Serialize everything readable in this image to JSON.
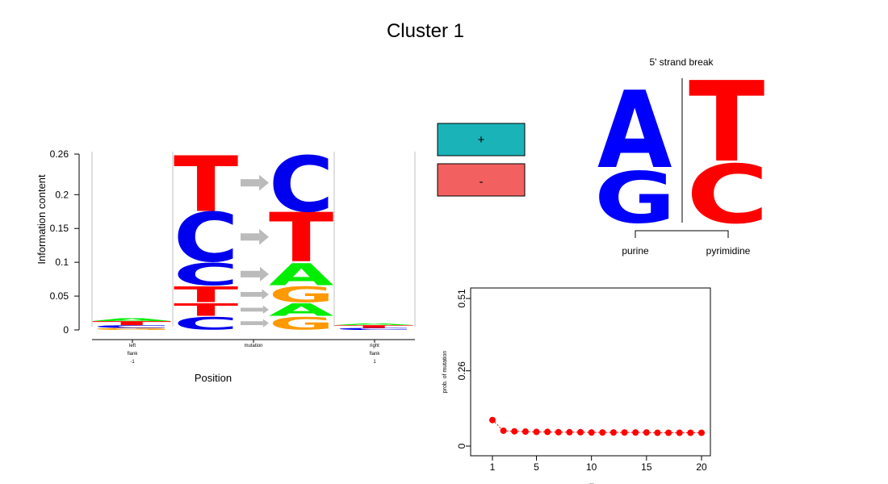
{
  "title": "Cluster 1",
  "colors": {
    "A": "#00ee00",
    "C": "#0000ee",
    "G": "#ff9900",
    "T": "#ff0000",
    "plus_box": "#1ab3b8",
    "minus_box": "#f26160",
    "purine": "#0000ff",
    "pyrimidine": "#ff0000",
    "arrow": "#bbbbbb",
    "points": "#ff0000"
  },
  "logo": {
    "ylabel": "Information content",
    "xlabel": "Position",
    "y_ticks": [
      "0",
      "0.05",
      "0.1",
      "0.15",
      "0.2",
      "0.26"
    ],
    "x_ticks": [
      {
        "lines": [
          "left",
          "flank",
          "-1"
        ]
      },
      {
        "lines": [
          "mutation"
        ]
      },
      {
        "lines": [
          "right",
          "flank",
          "1"
        ]
      }
    ]
  },
  "strand": {
    "plus_label": "+",
    "minus_label": "-"
  },
  "strand_break": {
    "title": "5' strand break",
    "left_label": "purine",
    "right_label": "pyrimidine",
    "left_letters": [
      "A",
      "G"
    ],
    "right_letters": [
      "T",
      "C"
    ]
  },
  "chart_data": [
    {
      "type": "bar",
      "name": "sequence logo",
      "ylabel": "Information content",
      "xlabel": "Position",
      "ylim": [
        0,
        0.26
      ],
      "positions": [
        "left flank -1",
        "mutation",
        "right flank 1"
      ],
      "left_flank": {
        "C": 0.004,
        "G": 0.003,
        "T": 0.006,
        "A": 0.004
      },
      "right_flank": {
        "C": 0.003,
        "T": 0.004,
        "A": 0.002
      },
      "mutations": [
        {
          "from": "C",
          "to": "G",
          "height": 0.02
        },
        {
          "from": "T",
          "to": "A",
          "height": 0.02
        },
        {
          "from": "T",
          "to": "G",
          "height": 0.025
        },
        {
          "from": "C",
          "to": "A",
          "height": 0.035
        },
        {
          "from": "C",
          "to": "T",
          "height": 0.075
        },
        {
          "from": "T",
          "to": "C",
          "height": 0.085
        }
      ]
    },
    {
      "type": "scatter",
      "name": "mutation probability",
      "ylabel": "prob. of mutation",
      "xlabel": "...",
      "x_ticks": [
        1,
        5,
        10,
        15,
        20
      ],
      "y_ticks": [
        "0",
        "0.26",
        "0.51"
      ],
      "ylim": [
        0,
        0.51
      ],
      "xlim": [
        1,
        20
      ],
      "x": [
        1,
        2,
        3,
        4,
        5,
        6,
        7,
        8,
        9,
        10,
        11,
        12,
        13,
        14,
        15,
        16,
        17,
        18,
        19,
        20
      ],
      "y": [
        0.09,
        0.053,
        0.051,
        0.05,
        0.049,
        0.049,
        0.048,
        0.048,
        0.048,
        0.047,
        0.047,
        0.047,
        0.047,
        0.047,
        0.047,
        0.046,
        0.046,
        0.046,
        0.046,
        0.046
      ]
    }
  ]
}
